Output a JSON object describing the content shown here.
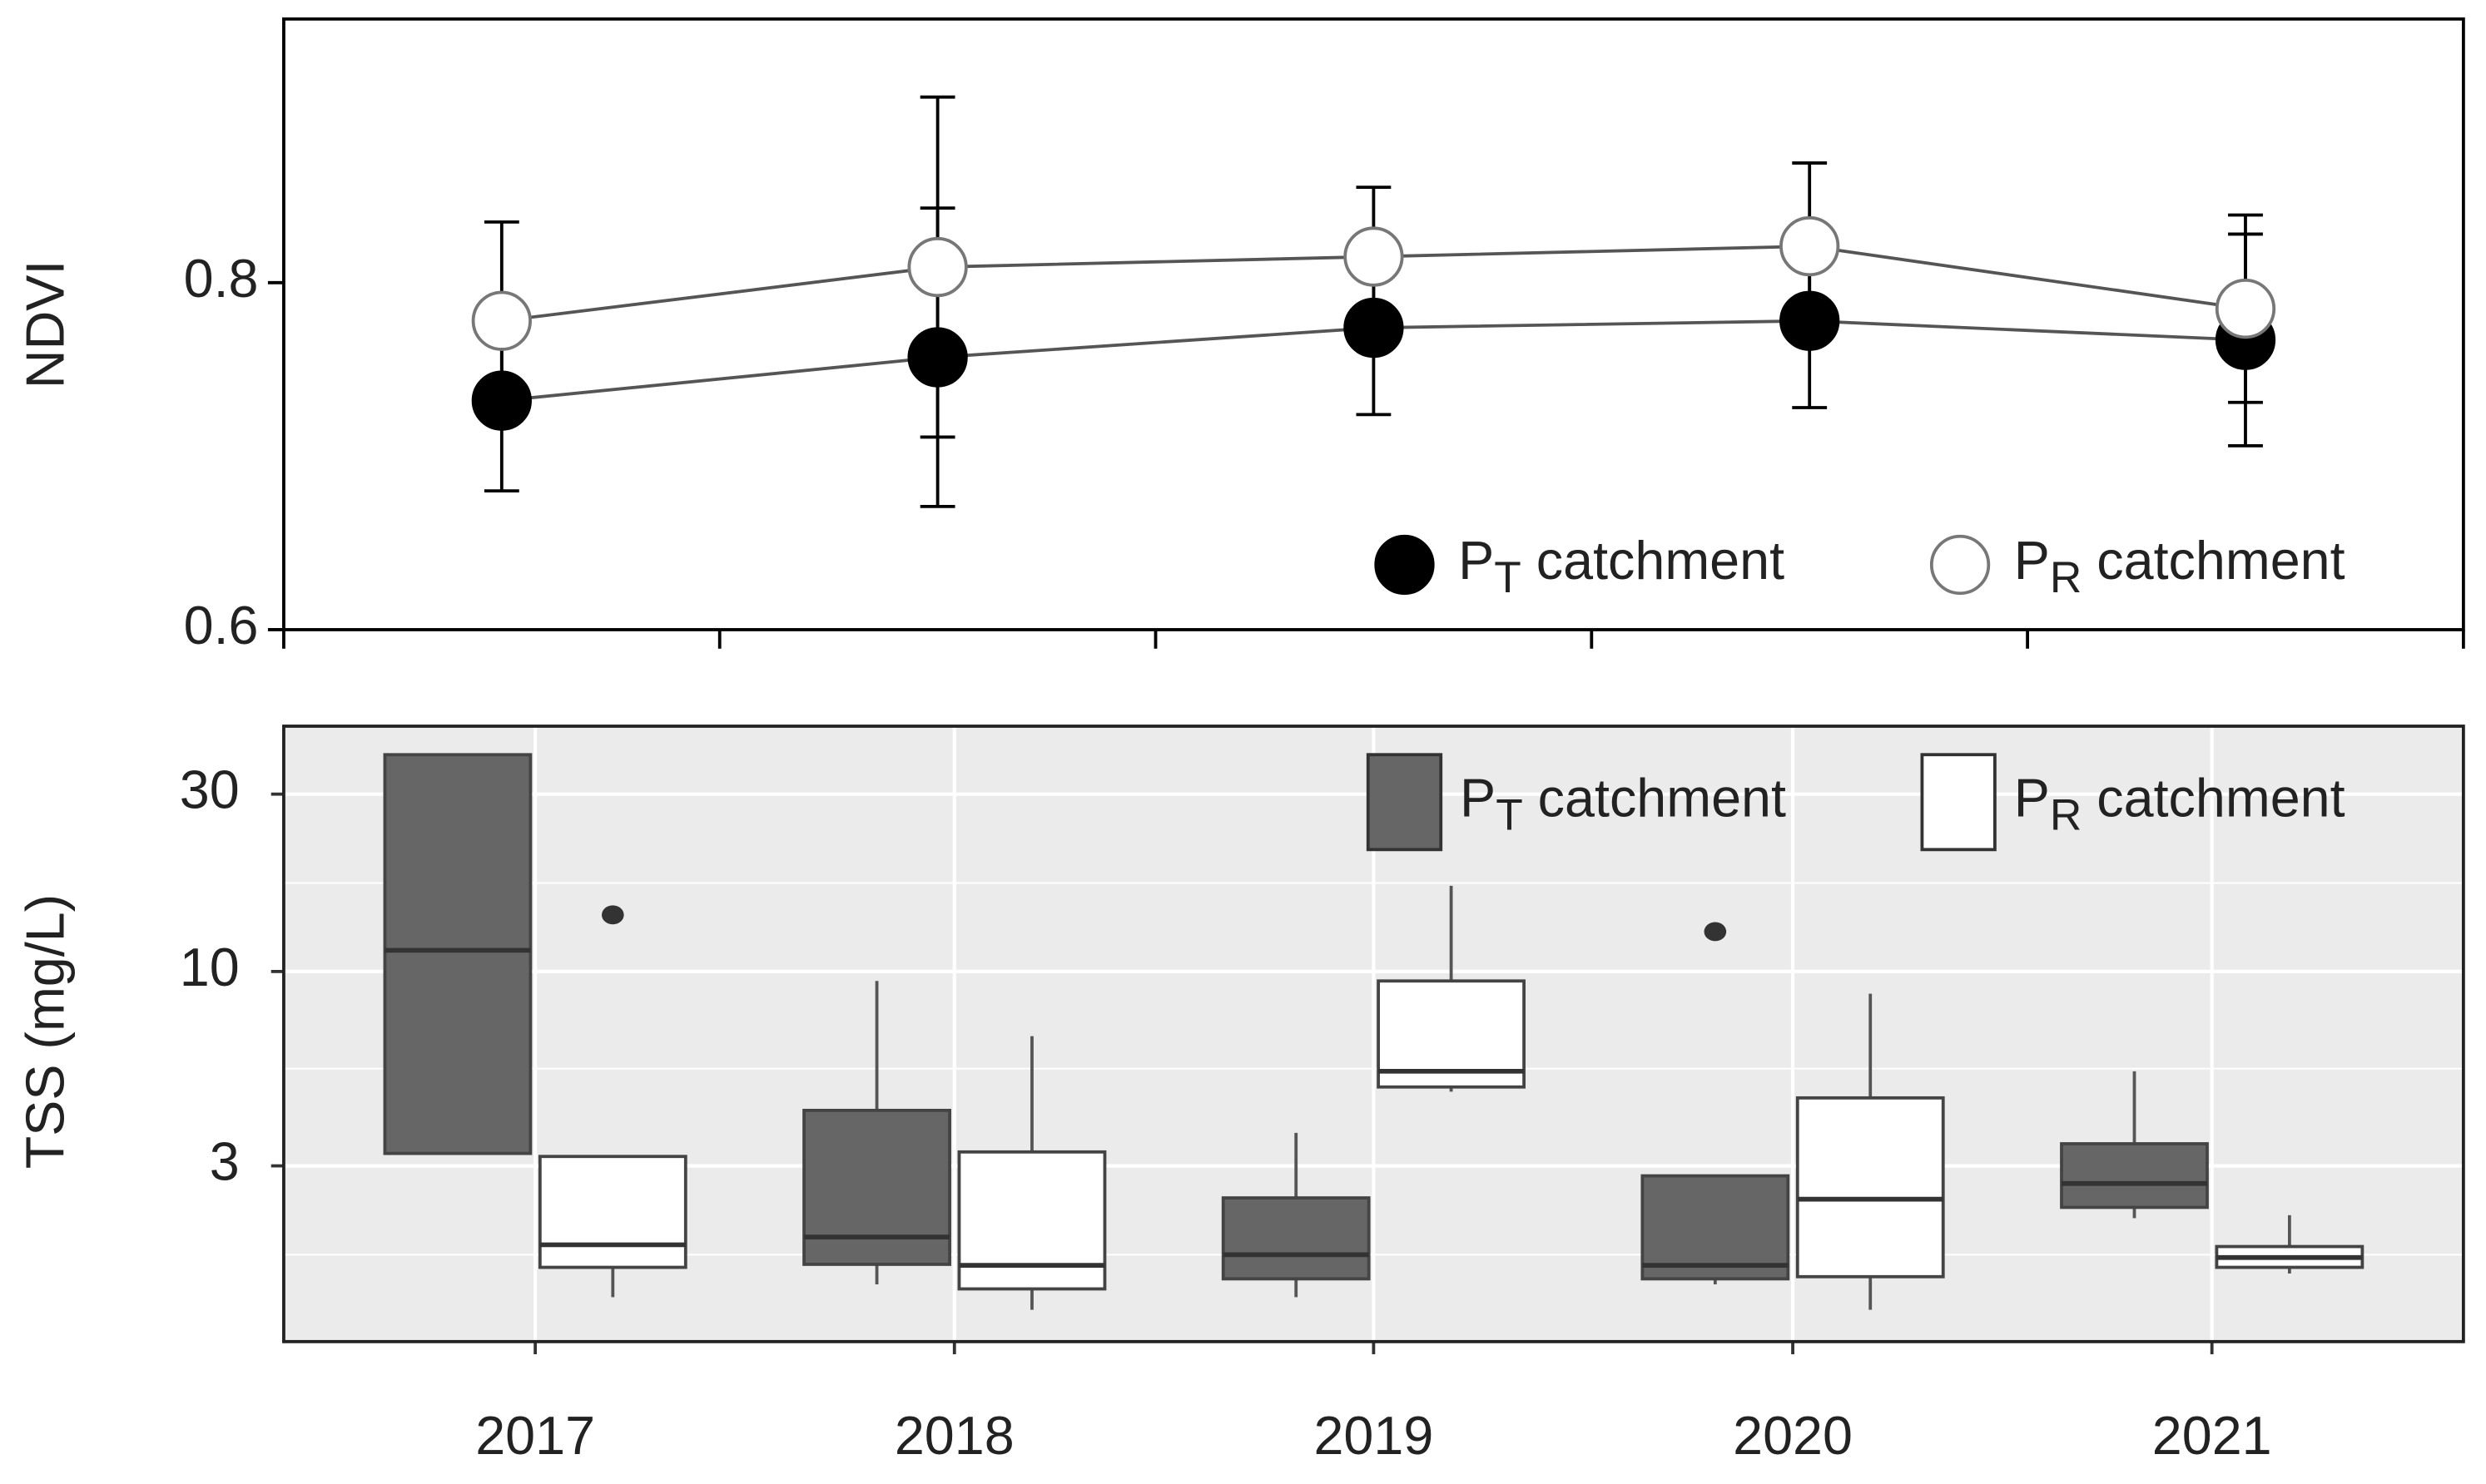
{
  "chart_data": [
    {
      "type": "line",
      "ylabel": "NDVI",
      "ylim": [
        0.6,
        0.952
      ],
      "yticks": [
        0.6,
        0.8
      ],
      "legend": "lower right",
      "series": [
        {
          "name": "PT catchment",
          "color": "#000000",
          "values": [
            0.732,
            0.757,
            0.774,
            0.778,
            0.767
          ],
          "errors": [
            0.052,
            0.086,
            0.05,
            0.05,
            0.061
          ]
        },
        {
          "name": "PR catchment",
          "color": "#ffffff",
          "values": [
            0.778,
            0.809,
            0.815,
            0.821,
            0.785
          ],
          "errors": [
            0.057,
            0.098,
            0.04,
            0.048,
            0.054
          ]
        }
      ]
    },
    {
      "type": "box",
      "ylabel": "TSS (mg/L)",
      "log_scale": true,
      "ylim": [
        1.01,
        45.7
      ],
      "yticks": [
        3,
        10,
        30
      ],
      "minor_yticks": [
        1.73,
        5.48,
        17.3
      ],
      "grid": true,
      "legend": "upper right",
      "categories": [
        "2017",
        "2018",
        "2019",
        "2020",
        "2021"
      ],
      "series": [
        {
          "name": "PT catchment",
          "color": "#666666",
          "boxes": [
            {
              "min": 3.24,
              "q1": 3.24,
              "median": 11.4,
              "q3": 38.3,
              "max": 38.3,
              "outliers": []
            },
            {
              "min": 1.44,
              "q1": 1.63,
              "median": 1.93,
              "q3": 4.23,
              "max": 9.43,
              "outliers": []
            },
            {
              "min": 1.33,
              "q1": 1.49,
              "median": 1.73,
              "q3": 2.46,
              "max": 3.68,
              "outliers": []
            },
            {
              "min": 1.44,
              "q1": 1.49,
              "median": 1.62,
              "q3": 2.82,
              "max": 2.82,
              "outliers": [
                12.8
              ]
            },
            {
              "min": 2.17,
              "q1": 2.32,
              "median": 2.69,
              "q3": 3.44,
              "max": 5.39,
              "outliers": []
            }
          ]
        },
        {
          "name": "PR catchment",
          "color": "#ffffff",
          "boxes": [
            {
              "min": 1.33,
              "q1": 1.6,
              "median": 1.84,
              "q3": 3.18,
              "max": 3.18,
              "outliers": [
                14.2
              ]
            },
            {
              "min": 1.23,
              "q1": 1.4,
              "median": 1.62,
              "q3": 3.27,
              "max": 6.7,
              "outliers": []
            },
            {
              "min": 4.75,
              "q1": 4.89,
              "median": 5.39,
              "q3": 9.43,
              "max": 17.0,
              "outliers": []
            },
            {
              "min": 1.23,
              "q1": 1.51,
              "median": 2.44,
              "q3": 4.57,
              "max": 8.71,
              "outliers": []
            },
            {
              "min": 1.54,
              "q1": 1.6,
              "median": 1.7,
              "q3": 1.82,
              "max": 2.21,
              "outliers": []
            }
          ]
        }
      ]
    }
  ]
}
